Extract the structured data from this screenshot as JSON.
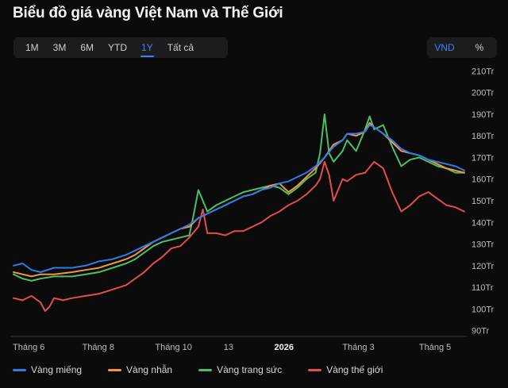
{
  "title": "Biểu đồ giá vàng Việt Nam và Thế Giới",
  "range_tabs": [
    "1M",
    "3M",
    "6M",
    "YTD",
    "1Y",
    "Tất cả"
  ],
  "active_range": "1Y",
  "unit_tabs": [
    "VND",
    "%"
  ],
  "active_unit": "VND",
  "chart_data": {
    "type": "line",
    "y_unit": "Tr",
    "ylim": [
      88,
      212
    ],
    "y_ticks": [
      "90Tr",
      "100Tr",
      "110Tr",
      "120Tr",
      "130Tr",
      "140Tr",
      "150Tr",
      "160Tr",
      "170Tr",
      "180Tr",
      "190Tr",
      "200Tr",
      "210Tr"
    ],
    "y_tick_values": [
      90,
      100,
      110,
      120,
      130,
      140,
      150,
      160,
      170,
      180,
      190,
      200,
      210
    ],
    "x_range": [
      0,
      100
    ],
    "x_ticks": [
      {
        "label": "Tháng 6",
        "x": 1.5,
        "bold": false
      },
      {
        "label": "Tháng 8",
        "x": 18.8,
        "bold": false
      },
      {
        "label": "Tháng 10",
        "x": 35.5,
        "bold": false
      },
      {
        "label": "13",
        "x": 47.7,
        "bold": false
      },
      {
        "label": "2026",
        "x": 60,
        "bold": true
      },
      {
        "label": "Tháng 3",
        "x": 76.5,
        "bold": false
      },
      {
        "label": "Tháng 5",
        "x": 93.5,
        "bold": false
      }
    ],
    "series": [
      {
        "name": "Vàng miếng",
        "color": "#2f7bea",
        "points": [
          [
            0,
            120
          ],
          [
            2,
            121
          ],
          [
            4,
            118
          ],
          [
            6,
            117
          ],
          [
            9,
            119
          ],
          [
            13,
            119
          ],
          [
            16,
            120
          ],
          [
            19,
            122
          ],
          [
            22,
            123
          ],
          [
            25,
            125
          ],
          [
            27,
            127
          ],
          [
            29,
            129
          ],
          [
            31,
            131
          ],
          [
            33,
            133
          ],
          [
            35,
            135
          ],
          [
            37,
            137
          ],
          [
            39,
            139
          ],
          [
            41,
            142
          ],
          [
            43,
            144
          ],
          [
            45,
            146
          ],
          [
            47,
            148
          ],
          [
            49,
            150
          ],
          [
            51,
            152
          ],
          [
            53,
            153
          ],
          [
            55,
            155
          ],
          [
            57,
            156
          ],
          [
            59,
            158
          ],
          [
            61,
            159
          ],
          [
            63,
            161
          ],
          [
            65,
            163
          ],
          [
            67,
            166
          ],
          [
            69,
            170
          ],
          [
            71,
            175
          ],
          [
            73,
            178
          ],
          [
            74,
            181
          ],
          [
            76,
            181
          ],
          [
            78,
            182
          ],
          [
            79,
            185
          ],
          [
            80,
            184
          ],
          [
            82,
            181
          ],
          [
            84,
            178
          ],
          [
            86,
            174
          ],
          [
            88,
            172
          ],
          [
            90,
            171
          ],
          [
            92,
            169
          ],
          [
            94,
            168
          ],
          [
            96,
            167
          ],
          [
            98,
            166
          ],
          [
            100,
            164
          ]
        ]
      },
      {
        "name": "Vàng nhẫn",
        "color": "#f5963c",
        "points": [
          [
            0,
            117
          ],
          [
            2,
            116
          ],
          [
            4,
            115
          ],
          [
            6,
            116
          ],
          [
            9,
            116
          ],
          [
            13,
            117
          ],
          [
            16,
            118
          ],
          [
            19,
            119
          ],
          [
            22,
            121
          ],
          [
            25,
            123
          ],
          [
            27,
            125
          ],
          [
            29,
            128
          ],
          [
            31,
            131
          ],
          [
            33,
            133
          ],
          [
            35,
            135
          ],
          [
            37,
            137
          ],
          [
            39,
            138
          ],
          [
            41,
            142
          ],
          [
            43,
            144
          ],
          [
            45,
            146
          ],
          [
            47,
            148
          ],
          [
            49,
            150
          ],
          [
            51,
            152
          ],
          [
            53,
            153
          ],
          [
            55,
            155
          ],
          [
            57,
            157
          ],
          [
            59,
            158
          ],
          [
            61,
            154
          ],
          [
            63,
            157
          ],
          [
            65,
            161
          ],
          [
            67,
            165
          ],
          [
            69,
            170
          ],
          [
            71,
            176
          ],
          [
            73,
            178
          ],
          [
            74,
            181
          ],
          [
            76,
            180
          ],
          [
            78,
            182
          ],
          [
            79,
            186
          ],
          [
            80,
            184
          ],
          [
            82,
            181
          ],
          [
            84,
            177
          ],
          [
            86,
            173
          ],
          [
            88,
            172
          ],
          [
            90,
            171
          ],
          [
            92,
            169
          ],
          [
            94,
            167
          ],
          [
            96,
            165
          ],
          [
            98,
            164
          ],
          [
            100,
            163
          ]
        ]
      },
      {
        "name": "Vàng trang sức",
        "color": "#4cbe63",
        "points": [
          [
            0,
            116
          ],
          [
            2,
            114
          ],
          [
            4,
            113
          ],
          [
            6,
            114
          ],
          [
            9,
            115
          ],
          [
            13,
            115
          ],
          [
            16,
            116
          ],
          [
            19,
            117
          ],
          [
            22,
            119
          ],
          [
            25,
            121
          ],
          [
            27,
            123
          ],
          [
            29,
            126
          ],
          [
            31,
            129
          ],
          [
            33,
            131
          ],
          [
            35,
            132
          ],
          [
            37,
            133
          ],
          [
            39,
            134
          ],
          [
            40,
            144
          ],
          [
            41,
            155
          ],
          [
            42,
            150
          ],
          [
            43,
            145
          ],
          [
            45,
            148
          ],
          [
            47,
            150
          ],
          [
            49,
            152
          ],
          [
            51,
            154
          ],
          [
            53,
            155
          ],
          [
            55,
            156
          ],
          [
            57,
            157
          ],
          [
            59,
            156
          ],
          [
            61,
            153
          ],
          [
            63,
            156
          ],
          [
            65,
            160
          ],
          [
            67,
            163
          ],
          [
            68,
            172
          ],
          [
            69,
            190
          ],
          [
            70,
            172
          ],
          [
            71,
            168
          ],
          [
            73,
            173
          ],
          [
            74,
            178
          ],
          [
            76,
            173
          ],
          [
            78,
            183
          ],
          [
            79,
            189
          ],
          [
            80,
            183
          ],
          [
            82,
            185
          ],
          [
            84,
            175
          ],
          [
            86,
            166
          ],
          [
            88,
            169
          ],
          [
            90,
            170
          ],
          [
            92,
            168
          ],
          [
            94,
            166
          ],
          [
            96,
            165
          ],
          [
            98,
            163
          ],
          [
            100,
            163
          ]
        ]
      },
      {
        "name": "Vàng thế giới",
        "color": "#e24d4d",
        "points": [
          [
            0,
            105
          ],
          [
            2,
            104
          ],
          [
            4,
            106
          ],
          [
            6,
            103
          ],
          [
            7,
            99
          ],
          [
            8,
            101
          ],
          [
            9,
            105
          ],
          [
            11,
            104
          ],
          [
            13,
            105
          ],
          [
            16,
            106
          ],
          [
            19,
            107
          ],
          [
            22,
            109
          ],
          [
            25,
            111
          ],
          [
            27,
            114
          ],
          [
            29,
            117
          ],
          [
            31,
            121
          ],
          [
            33,
            124
          ],
          [
            35,
            128
          ],
          [
            37,
            129
          ],
          [
            39,
            133
          ],
          [
            41,
            138
          ],
          [
            42,
            146
          ],
          [
            43,
            135
          ],
          [
            45,
            135
          ],
          [
            47,
            134
          ],
          [
            49,
            136
          ],
          [
            51,
            136
          ],
          [
            53,
            138
          ],
          [
            55,
            140
          ],
          [
            57,
            143
          ],
          [
            59,
            145
          ],
          [
            61,
            148
          ],
          [
            63,
            150
          ],
          [
            65,
            153
          ],
          [
            67,
            157
          ],
          [
            68,
            160
          ],
          [
            69,
            168
          ],
          [
            70,
            162
          ],
          [
            71,
            150
          ],
          [
            73,
            160
          ],
          [
            74,
            159
          ],
          [
            76,
            162
          ],
          [
            78,
            163
          ],
          [
            80,
            168
          ],
          [
            82,
            165
          ],
          [
            84,
            154
          ],
          [
            86,
            145
          ],
          [
            88,
            148
          ],
          [
            90,
            152
          ],
          [
            92,
            154
          ],
          [
            94,
            151
          ],
          [
            96,
            148
          ],
          [
            98,
            147
          ],
          [
            100,
            145
          ]
        ]
      }
    ]
  }
}
